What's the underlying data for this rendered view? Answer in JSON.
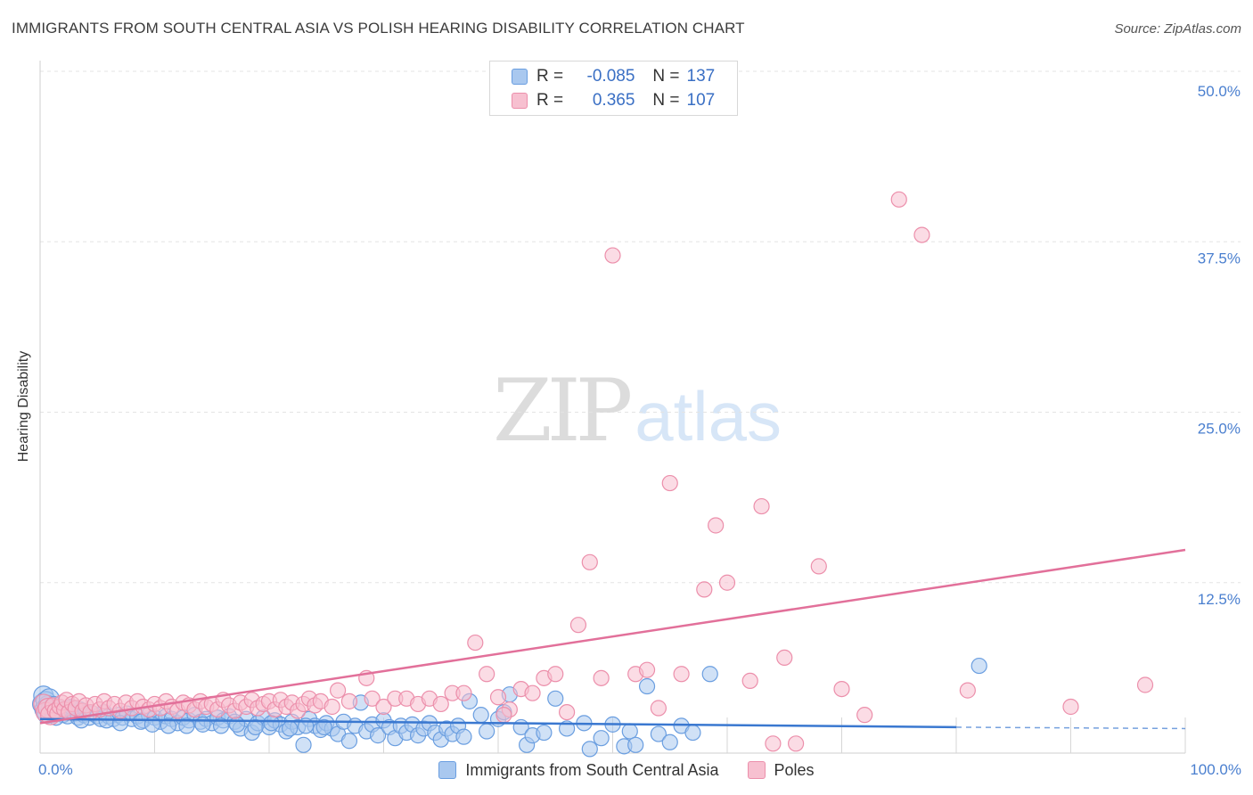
{
  "header": {
    "title": "IMMIGRANTS FROM SOUTH CENTRAL ASIA VS POLISH HEARING DISABILITY CORRELATION CHART",
    "source": "Source: ZipAtlas.com"
  },
  "watermark": {
    "zip": "ZIP",
    "atlas": "atlas"
  },
  "legend_top": {
    "rows": [
      {
        "r_label": "R =",
        "r_value": "-0.085",
        "n_label": "N =",
        "n_value": "137",
        "color": "#a9c8ef",
        "border": "#6a9ee0"
      },
      {
        "r_label": "R =",
        "r_value": "0.365",
        "n_label": "N =",
        "n_value": "107",
        "color": "#f7c0d0",
        "border": "#ec8fab"
      }
    ]
  },
  "legend_bottom": {
    "items": [
      {
        "label": "Immigrants from South Central Asia",
        "color": "#a9c8ef",
        "border": "#6a9ee0"
      },
      {
        "label": "Poles",
        "color": "#f7c0d0",
        "border": "#ec8fab"
      }
    ]
  },
  "chart_data": {
    "type": "scatter",
    "title": "IMMIGRANTS FROM SOUTH CENTRAL ASIA VS POLISH HEARING DISABILITY CORRELATION CHART",
    "xlabel": "",
    "ylabel": "Hearing Disability",
    "xlim": [
      0,
      100
    ],
    "ylim": [
      0,
      50
    ],
    "x_tick_labels": [
      "0.0%",
      "100.0%"
    ],
    "y_ticks": [
      12.5,
      25.0,
      37.5,
      50.0
    ],
    "y_tick_labels": [
      "12.5%",
      "25.0%",
      "37.5%",
      "50.0%"
    ],
    "grid": true,
    "colors": {
      "blue_fill": "#a9c8ef",
      "blue_stroke": "#6a9ee0",
      "blue_line": "#3a78d0",
      "pink_fill": "#f7c0d0",
      "pink_stroke": "#ec8fab",
      "pink_line": "#e2709a",
      "tick_label": "#4a7fcf",
      "grid": "#e3e3e3"
    },
    "series": [
      {
        "name": "Immigrants from South Central Asia",
        "r": -0.085,
        "n": 137,
        "trend": {
          "x": [
            0,
            80
          ],
          "y": [
            2.5,
            1.9
          ],
          "dashed_to": [
            100,
            1.8
          ]
        },
        "points": [
          [
            0.2,
            3.6
          ],
          [
            0.3,
            4.2
          ],
          [
            0.4,
            3.2
          ],
          [
            0.5,
            3.8
          ],
          [
            0.6,
            2.9
          ],
          [
            0.7,
            3.5
          ],
          [
            0.8,
            4.0
          ],
          [
            0.9,
            3.1
          ],
          [
            1.0,
            3.3
          ],
          [
            1.1,
            2.8
          ],
          [
            1.2,
            3.6
          ],
          [
            1.3,
            3.0
          ],
          [
            1.5,
            2.9
          ],
          [
            1.6,
            3.4
          ],
          [
            1.8,
            3.2
          ],
          [
            2.0,
            2.8
          ],
          [
            2.2,
            3.1
          ],
          [
            2.4,
            2.7
          ],
          [
            2.6,
            3.3
          ],
          [
            2.8,
            3.0
          ],
          [
            3.0,
            2.9
          ],
          [
            3.3,
            2.6
          ],
          [
            3.5,
            3.2
          ],
          [
            3.8,
            2.8
          ],
          [
            4.0,
            3.0
          ],
          [
            4.3,
            2.6
          ],
          [
            4.6,
            2.9
          ],
          [
            5.0,
            2.7
          ],
          [
            5.3,
            2.5
          ],
          [
            5.6,
            3.0
          ],
          [
            6.0,
            2.7
          ],
          [
            6.4,
            2.5
          ],
          [
            6.8,
            2.8
          ],
          [
            7.2,
            2.6
          ],
          [
            7.6,
            2.9
          ],
          [
            8.0,
            2.5
          ],
          [
            8.5,
            2.7
          ],
          [
            9.0,
            2.4
          ],
          [
            9.5,
            2.8
          ],
          [
            10.0,
            2.6
          ],
          [
            10.5,
            2.3
          ],
          [
            11.0,
            2.7
          ],
          [
            11.5,
            2.5
          ],
          [
            12.0,
            2.2
          ],
          [
            12.5,
            2.6
          ],
          [
            13.0,
            2.4
          ],
          [
            13.5,
            2.8
          ],
          [
            14.0,
            2.3
          ],
          [
            14.5,
            2.5
          ],
          [
            15.0,
            2.2
          ],
          [
            15.5,
            2.6
          ],
          [
            16.0,
            2.4
          ],
          [
            16.5,
            2.7
          ],
          [
            17.0,
            2.3
          ],
          [
            17.5,
            1.8
          ],
          [
            18.0,
            2.5
          ],
          [
            18.5,
            1.5
          ],
          [
            19.0,
            2.2
          ],
          [
            19.5,
            2.6
          ],
          [
            20.0,
            1.9
          ],
          [
            20.5,
            2.4
          ],
          [
            21.0,
            2.1
          ],
          [
            21.5,
            1.6
          ],
          [
            22.0,
            2.3
          ],
          [
            22.5,
            1.9
          ],
          [
            23.0,
            0.6
          ],
          [
            23.5,
            2.5
          ],
          [
            24.0,
            2.0
          ],
          [
            24.5,
            1.7
          ],
          [
            25.0,
            2.2
          ],
          [
            25.5,
            1.8
          ],
          [
            26.0,
            1.4
          ],
          [
            26.5,
            2.3
          ],
          [
            27.0,
            0.9
          ],
          [
            27.5,
            2.0
          ],
          [
            28.0,
            3.7
          ],
          [
            28.5,
            1.6
          ],
          [
            29.0,
            2.1
          ],
          [
            29.5,
            1.3
          ],
          [
            30.0,
            2.4
          ],
          [
            30.5,
            1.9
          ],
          [
            31.0,
            1.1
          ],
          [
            31.5,
            2.0
          ],
          [
            32.0,
            1.5
          ],
          [
            32.5,
            2.1
          ],
          [
            33.0,
            1.3
          ],
          [
            33.5,
            1.8
          ],
          [
            34.0,
            2.2
          ],
          [
            34.5,
            1.5
          ],
          [
            35.0,
            1.0
          ],
          [
            35.5,
            1.8
          ],
          [
            36.0,
            1.4
          ],
          [
            36.5,
            2.0
          ],
          [
            37.0,
            1.2
          ],
          [
            37.5,
            3.8
          ],
          [
            38.5,
            2.8
          ],
          [
            39.0,
            1.6
          ],
          [
            40.0,
            2.5
          ],
          [
            40.5,
            3.0
          ],
          [
            41.0,
            4.3
          ],
          [
            42.0,
            1.9
          ],
          [
            42.5,
            0.6
          ],
          [
            43.0,
            1.3
          ],
          [
            44.0,
            1.5
          ],
          [
            45.0,
            4.0
          ],
          [
            46.0,
            1.8
          ],
          [
            47.5,
            2.2
          ],
          [
            48.0,
            0.3
          ],
          [
            49.0,
            1.1
          ],
          [
            50.0,
            2.1
          ],
          [
            51.0,
            0.5
          ],
          [
            51.5,
            1.6
          ],
          [
            52.0,
            0.6
          ],
          [
            53.0,
            4.9
          ],
          [
            54.0,
            1.4
          ],
          [
            55.0,
            0.8
          ],
          [
            56.0,
            2.0
          ],
          [
            57.0,
            1.5
          ],
          [
            58.5,
            5.8
          ],
          [
            82.0,
            6.4
          ],
          [
            1.4,
            2.6
          ],
          [
            2.7,
            3.4
          ],
          [
            3.6,
            2.4
          ],
          [
            5.8,
            2.4
          ],
          [
            7.0,
            2.2
          ],
          [
            8.8,
            2.3
          ],
          [
            9.8,
            2.1
          ],
          [
            11.2,
            2.0
          ],
          [
            12.8,
            2.0
          ],
          [
            14.2,
            2.1
          ],
          [
            15.8,
            2.0
          ],
          [
            17.2,
            2.1
          ],
          [
            18.8,
            1.9
          ],
          [
            20.2,
            2.2
          ],
          [
            21.8,
            1.8
          ],
          [
            23.2,
            2.0
          ],
          [
            24.8,
            1.9
          ]
        ]
      },
      {
        "name": "Poles",
        "r": 0.365,
        "n": 107,
        "trend": {
          "x": [
            0,
            100
          ],
          "y": [
            2.2,
            14.9
          ]
        },
        "points": [
          [
            0.3,
            3.6
          ],
          [
            0.5,
            3.0
          ],
          [
            0.7,
            3.3
          ],
          [
            0.9,
            2.8
          ],
          [
            1.1,
            3.5
          ],
          [
            1.3,
            3.1
          ],
          [
            1.5,
            2.9
          ],
          [
            1.7,
            3.4
          ],
          [
            1.9,
            3.7
          ],
          [
            2.1,
            3.2
          ],
          [
            2.3,
            3.9
          ],
          [
            2.5,
            3.0
          ],
          [
            2.8,
            3.6
          ],
          [
            3.1,
            3.3
          ],
          [
            3.4,
            3.8
          ],
          [
            3.7,
            3.1
          ],
          [
            4.0,
            3.5
          ],
          [
            4.4,
            3.0
          ],
          [
            4.8,
            3.6
          ],
          [
            5.2,
            3.2
          ],
          [
            5.6,
            3.8
          ],
          [
            6.0,
            3.3
          ],
          [
            6.5,
            3.6
          ],
          [
            7.0,
            3.1
          ],
          [
            7.5,
            3.7
          ],
          [
            8.0,
            3.3
          ],
          [
            8.5,
            3.8
          ],
          [
            9.0,
            3.4
          ],
          [
            9.5,
            3.2
          ],
          [
            10.0,
            3.6
          ],
          [
            10.5,
            3.3
          ],
          [
            11.0,
            3.8
          ],
          [
            11.5,
            3.4
          ],
          [
            12.0,
            3.1
          ],
          [
            12.5,
            3.7
          ],
          [
            13.0,
            3.5
          ],
          [
            13.5,
            3.2
          ],
          [
            14.0,
            3.8
          ],
          [
            14.5,
            3.4
          ],
          [
            15.0,
            3.6
          ],
          [
            15.5,
            3.2
          ],
          [
            16.0,
            3.9
          ],
          [
            16.5,
            3.5
          ],
          [
            17.0,
            3.1
          ],
          [
            17.5,
            3.7
          ],
          [
            18.0,
            3.4
          ],
          [
            18.5,
            3.9
          ],
          [
            19.0,
            3.3
          ],
          [
            19.5,
            3.6
          ],
          [
            20.0,
            3.8
          ],
          [
            20.5,
            3.2
          ],
          [
            21.0,
            3.9
          ],
          [
            21.5,
            3.4
          ],
          [
            22.0,
            3.7
          ],
          [
            22.5,
            3.1
          ],
          [
            23.0,
            3.6
          ],
          [
            23.5,
            4.0
          ],
          [
            24.0,
            3.5
          ],
          [
            24.5,
            3.8
          ],
          [
            25.5,
            3.4
          ],
          [
            26.0,
            4.6
          ],
          [
            27.0,
            3.8
          ],
          [
            28.5,
            5.5
          ],
          [
            29.0,
            4.0
          ],
          [
            30.0,
            3.4
          ],
          [
            31.0,
            4.0
          ],
          [
            32.0,
            4.0
          ],
          [
            33.0,
            3.6
          ],
          [
            34.0,
            4.0
          ],
          [
            35.0,
            3.6
          ],
          [
            36.0,
            4.4
          ],
          [
            37.0,
            4.4
          ],
          [
            38.0,
            8.1
          ],
          [
            39.0,
            5.8
          ],
          [
            40.0,
            4.1
          ],
          [
            41.0,
            3.2
          ],
          [
            42.0,
            4.7
          ],
          [
            43.0,
            4.4
          ],
          [
            44.0,
            5.5
          ],
          [
            45.0,
            5.8
          ],
          [
            46.0,
            3.0
          ],
          [
            47.0,
            9.4
          ],
          [
            48.0,
            14.0
          ],
          [
            49.0,
            5.5
          ],
          [
            50.0,
            36.5
          ],
          [
            52.0,
            5.8
          ],
          [
            53.0,
            6.1
          ],
          [
            54.0,
            3.3
          ],
          [
            55.0,
            19.8
          ],
          [
            56.0,
            5.8
          ],
          [
            58.0,
            12.0
          ],
          [
            59.0,
            16.7
          ],
          [
            60.0,
            12.5
          ],
          [
            62.0,
            5.3
          ],
          [
            63.0,
            18.1
          ],
          [
            64.0,
            0.7
          ],
          [
            65.0,
            7.0
          ],
          [
            66.0,
            0.7
          ],
          [
            68.0,
            13.7
          ],
          [
            70.0,
            4.7
          ],
          [
            72.0,
            2.8
          ],
          [
            75.0,
            40.6
          ],
          [
            77.0,
            38.0
          ],
          [
            81.0,
            4.6
          ],
          [
            90.0,
            3.4
          ],
          [
            96.5,
            5.0
          ],
          [
            40.5,
            2.8
          ]
        ]
      }
    ]
  }
}
